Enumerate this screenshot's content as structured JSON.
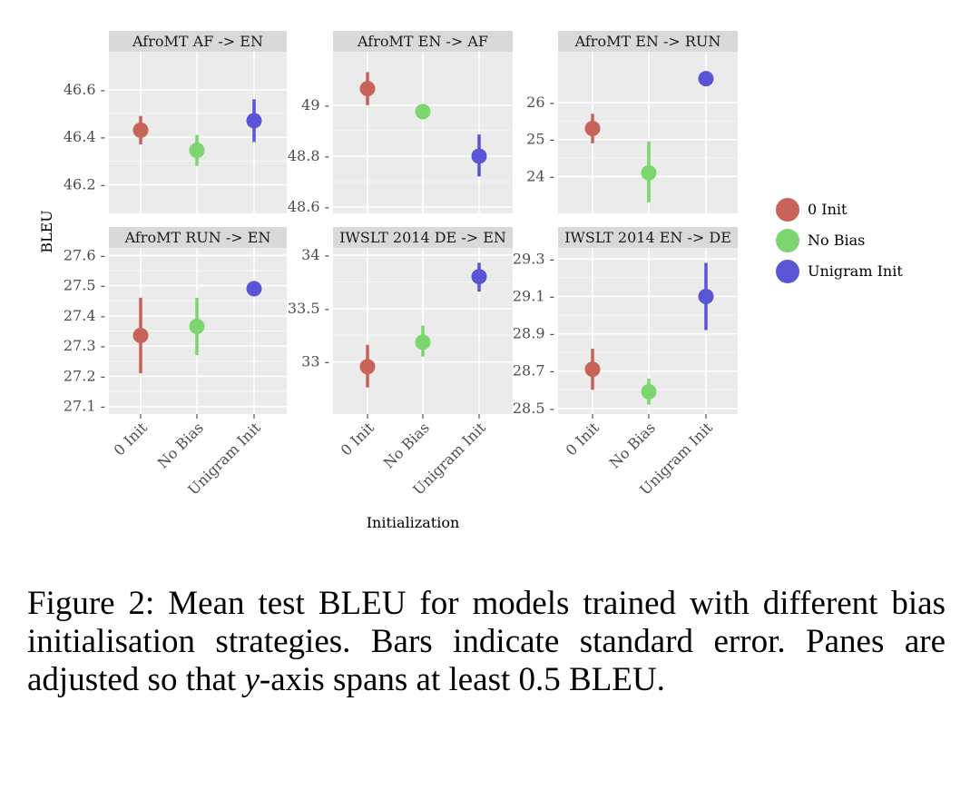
{
  "chart_data": {
    "type": "scatter",
    "subtype": "point-with-error-bars, faceted",
    "x_label": "Initialization",
    "y_label": "BLEU",
    "categories": [
      "0 Init",
      "No Bias",
      "Unigram Init"
    ],
    "legend": {
      "title": "",
      "entries": [
        {
          "label": "0 Init",
          "color": "#c8635a"
        },
        {
          "label": "No Bias",
          "color": "#7bd66e"
        },
        {
          "label": "Unigram Init",
          "color": "#5a55d6"
        }
      ]
    },
    "facets": [
      {
        "title": "AfroMT AF -> EN",
        "ylim": [
          46.08,
          46.76
        ],
        "yticks": [
          46.2,
          46.4,
          46.6
        ],
        "ytick_labels": [
          "46.2 -",
          "46.4 -",
          "46.6 -"
        ],
        "points": [
          {
            "category": "0 Init",
            "mean": 46.43,
            "low": 46.37,
            "high": 46.49
          },
          {
            "category": "No Bias",
            "mean": 46.345,
            "low": 46.28,
            "high": 46.41
          },
          {
            "category": "Unigram Init",
            "mean": 46.47,
            "low": 46.38,
            "high": 46.56
          }
        ]
      },
      {
        "title": "AfroMT EN -> AF",
        "ylim": [
          48.575,
          49.21
        ],
        "yticks": [
          48.6,
          48.8,
          49.0
        ],
        "ytick_labels": [
          "48.6 -",
          "48.8 -",
          "49 -"
        ],
        "points": [
          {
            "category": "0 Init",
            "mean": 49.065,
            "low": 49.0,
            "high": 49.13
          },
          {
            "category": "No Bias",
            "mean": 48.975,
            "low": 48.975,
            "high": 48.975
          },
          {
            "category": "Unigram Init",
            "mean": 48.8,
            "low": 48.72,
            "high": 48.885
          }
        ]
      },
      {
        "title": "AfroMT EN -> RUN",
        "ylim": [
          23.0,
          27.38
        ],
        "yticks": [
          24,
          25,
          26
        ],
        "ytick_labels": [
          "24 -",
          "25 -",
          "26 -"
        ],
        "points": [
          {
            "category": "0 Init",
            "mean": 25.3,
            "low": 24.9,
            "high": 25.7
          },
          {
            "category": "No Bias",
            "mean": 24.1,
            "low": 23.3,
            "high": 24.95
          },
          {
            "category": "Unigram Init",
            "mean": 26.65,
            "low": 26.65,
            "high": 26.65
          }
        ]
      },
      {
        "title": "AfroMT RUN -> EN",
        "ylim": [
          27.075,
          27.625
        ],
        "yticks": [
          27.1,
          27.2,
          27.3,
          27.4,
          27.5,
          27.6
        ],
        "ytick_labels": [
          "27.1 -",
          "27.2 -",
          "27.3 -",
          "27.4 -",
          "27.5 -",
          "27.6 -"
        ],
        "points": [
          {
            "category": "0 Init",
            "mean": 27.335,
            "low": 27.21,
            "high": 27.46
          },
          {
            "category": "No Bias",
            "mean": 27.365,
            "low": 27.27,
            "high": 27.46
          },
          {
            "category": "Unigram Init",
            "mean": 27.49,
            "low": 27.49,
            "high": 27.49
          }
        ]
      },
      {
        "title": "IWSLT 2014 DE -> EN",
        "ylim": [
          32.51,
          34.07
        ],
        "yticks": [
          33.0,
          33.5,
          34.0
        ],
        "ytick_labels": [
          "33 -",
          "33.5 -",
          "34 -"
        ],
        "points": [
          {
            "category": "0 Init",
            "mean": 32.955,
            "low": 32.76,
            "high": 33.16
          },
          {
            "category": "No Bias",
            "mean": 33.185,
            "low": 33.05,
            "high": 33.34
          },
          {
            "category": "Unigram Init",
            "mean": 33.8,
            "low": 33.66,
            "high": 33.93
          }
        ]
      },
      {
        "title": "IWSLT 2014 EN -> DE",
        "ylim": [
          28.47,
          29.36
        ],
        "yticks": [
          28.5,
          28.7,
          28.9,
          29.1,
          29.3
        ],
        "ytick_labels": [
          "28.5 -",
          "28.7 -",
          "28.9 -",
          "29.1 -",
          "29.3 -"
        ],
        "points": [
          {
            "category": "0 Init",
            "mean": 28.71,
            "low": 28.6,
            "high": 28.82
          },
          {
            "category": "No Bias",
            "mean": 28.59,
            "low": 28.52,
            "high": 28.66
          },
          {
            "category": "Unigram Init",
            "mean": 29.1,
            "low": 28.92,
            "high": 29.28
          }
        ]
      }
    ]
  },
  "caption": {
    "prefix": "Figure 2: Mean test",
    "sc1": "BLEU",
    "mid1": "for models trained with different bias initialisation strategies. Bars indicate standard error. Panes are adjusted so that",
    "y_var": "y",
    "mid2": "-axis spans at least 0.5",
    "sc2": "BLEU",
    "suffix": "."
  }
}
